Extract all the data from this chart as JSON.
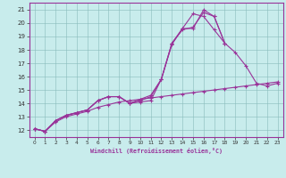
{
  "xlabel": "Windchill (Refroidissement éolien,°C)",
  "background_color": "#c8ecec",
  "line_color": "#993399",
  "xlim": [
    -0.5,
    23.5
  ],
  "ylim": [
    11.5,
    21.5
  ],
  "xticks": [
    0,
    1,
    2,
    3,
    4,
    5,
    6,
    7,
    8,
    9,
    10,
    11,
    12,
    13,
    14,
    15,
    16,
    17,
    18,
    19,
    20,
    21,
    22,
    23
  ],
  "yticks": [
    12,
    13,
    14,
    15,
    16,
    17,
    18,
    19,
    20,
    21
  ],
  "series": [
    {
      "x": [
        0,
        1,
        2,
        3,
        4,
        5,
        6,
        7,
        8,
        9,
        10,
        11,
        12,
        13,
        14,
        15,
        16,
        17,
        18,
        19,
        20,
        21,
        22,
        23
      ],
      "y": [
        12.1,
        11.9,
        12.6,
        13.0,
        13.2,
        13.4,
        13.7,
        13.9,
        14.1,
        14.2,
        14.3,
        14.4,
        14.5,
        14.6,
        14.7,
        14.8,
        14.9,
        15.0,
        15.1,
        15.2,
        15.3,
        15.4,
        15.5,
        15.6
      ]
    },
    {
      "x": [
        0,
        1,
        2,
        3,
        4,
        5,
        6,
        7,
        8,
        9,
        10,
        11,
        12,
        13,
        14,
        15,
        16,
        17,
        18,
        19,
        20,
        21,
        22,
        23
      ],
      "y": [
        12.1,
        11.9,
        12.7,
        13.1,
        13.3,
        13.5,
        14.2,
        14.5,
        14.5,
        14.0,
        14.1,
        14.2,
        15.8,
        18.5,
        19.5,
        19.7,
        20.8,
        20.5,
        18.5,
        17.8,
        16.8,
        15.5,
        15.3,
        15.5
      ]
    },
    {
      "x": [
        0,
        1,
        2,
        3,
        4,
        5,
        6,
        7,
        8,
        9,
        10,
        11,
        12,
        13,
        14,
        15,
        16,
        17,
        18
      ],
      "y": [
        12.1,
        11.9,
        12.7,
        13.1,
        13.3,
        13.5,
        14.2,
        14.5,
        14.5,
        14.0,
        14.2,
        14.5,
        15.8,
        18.5,
        19.6,
        19.6,
        21.0,
        20.5,
        18.5
      ]
    },
    {
      "x": [
        0,
        1,
        2,
        3,
        4,
        5,
        6,
        7,
        8,
        9,
        10,
        11,
        12,
        13,
        14,
        15,
        16,
        17,
        18
      ],
      "y": [
        12.1,
        11.9,
        12.7,
        13.1,
        13.3,
        13.5,
        14.2,
        14.5,
        14.5,
        14.0,
        14.3,
        14.6,
        15.8,
        18.4,
        19.6,
        20.7,
        20.5,
        19.5,
        18.5
      ]
    }
  ]
}
